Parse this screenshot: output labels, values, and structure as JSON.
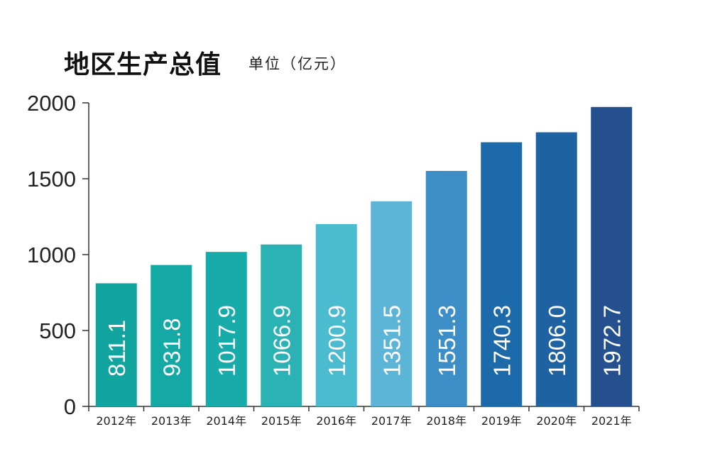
{
  "title": "地区生产总值",
  "unit_label": "单位（亿元）",
  "chart_data": {
    "type": "bar",
    "title": "地区生产总值",
    "unit": "单位（亿元）",
    "categories": [
      "2012年",
      "2013年",
      "2014年",
      "2015年",
      "2016年",
      "2017年",
      "2018年",
      "2019年",
      "2020年",
      "2021年"
    ],
    "values": [
      811.1,
      931.8,
      1017.9,
      1066.9,
      1200.9,
      1351.5,
      1551.3,
      1740.3,
      1806.0,
      1972.7
    ],
    "value_labels": [
      "811.1",
      "931.8",
      "1017.9",
      "1066.9",
      "1200.9",
      "1351.5",
      "1551.3",
      "1740.3",
      "1806.0",
      "1972.7"
    ],
    "yticks": [
      0,
      500,
      1000,
      1500,
      2000
    ],
    "ylim": [
      0,
      2000
    ],
    "grid": false,
    "legend": "none",
    "bar_colors": [
      "#12a5a0",
      "#14a9a5",
      "#17aca9",
      "#2bb2b4",
      "#4bbbd0",
      "#5cb5d6",
      "#3d8ec6",
      "#1d6aaa",
      "#1e62a2",
      "#24508f"
    ]
  }
}
